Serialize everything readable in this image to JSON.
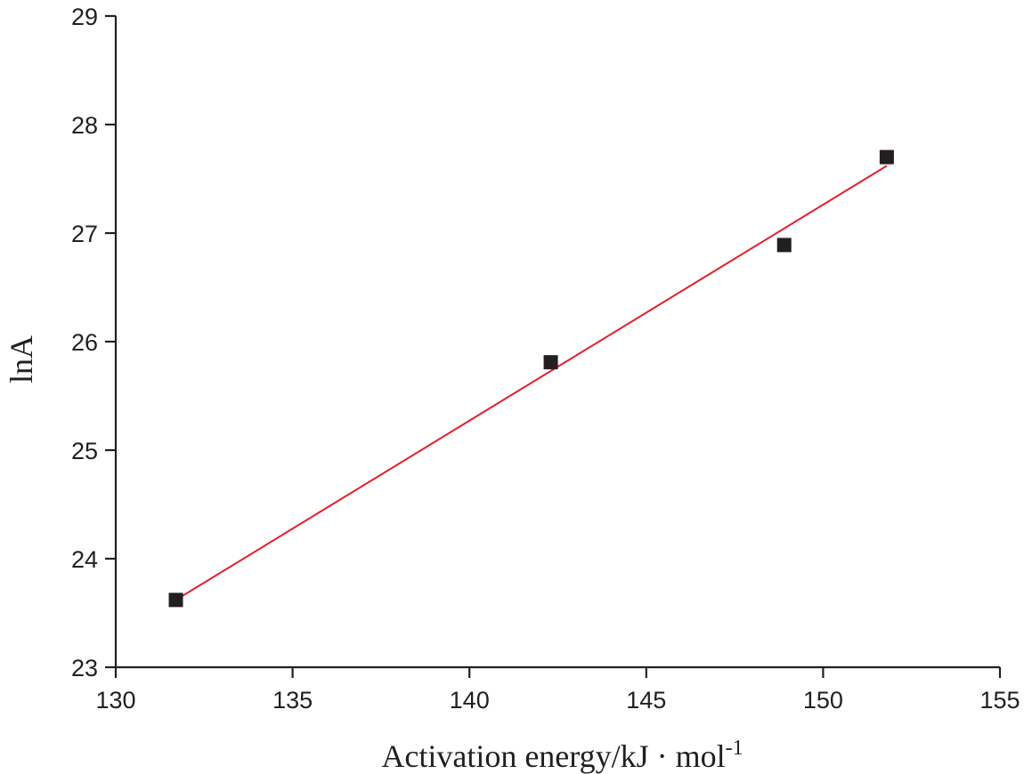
{
  "chart_data": {
    "type": "scatter",
    "title": "",
    "xlabel": "Activation energy/kJ · mol",
    "xlabel_superscript": "-1",
    "ylabel": "lnA",
    "xlim": [
      130,
      155
    ],
    "ylim": [
      23,
      29
    ],
    "x_ticks": [
      130,
      135,
      140,
      145,
      150,
      155
    ],
    "y_ticks": [
      23,
      24,
      25,
      26,
      27,
      28,
      29
    ],
    "grid": false,
    "series": [
      {
        "type": "scatter",
        "marker": "square",
        "color": "#231f20",
        "points": [
          {
            "x": 131.7,
            "y": 23.62
          },
          {
            "x": 142.3,
            "y": 25.81
          },
          {
            "x": 148.9,
            "y": 26.89
          },
          {
            "x": 151.8,
            "y": 27.7
          }
        ]
      },
      {
        "type": "line",
        "color": "#e8202a",
        "points": [
          {
            "x": 131.7,
            "y": 23.62
          },
          {
            "x": 151.8,
            "y": 27.62
          }
        ]
      }
    ]
  }
}
